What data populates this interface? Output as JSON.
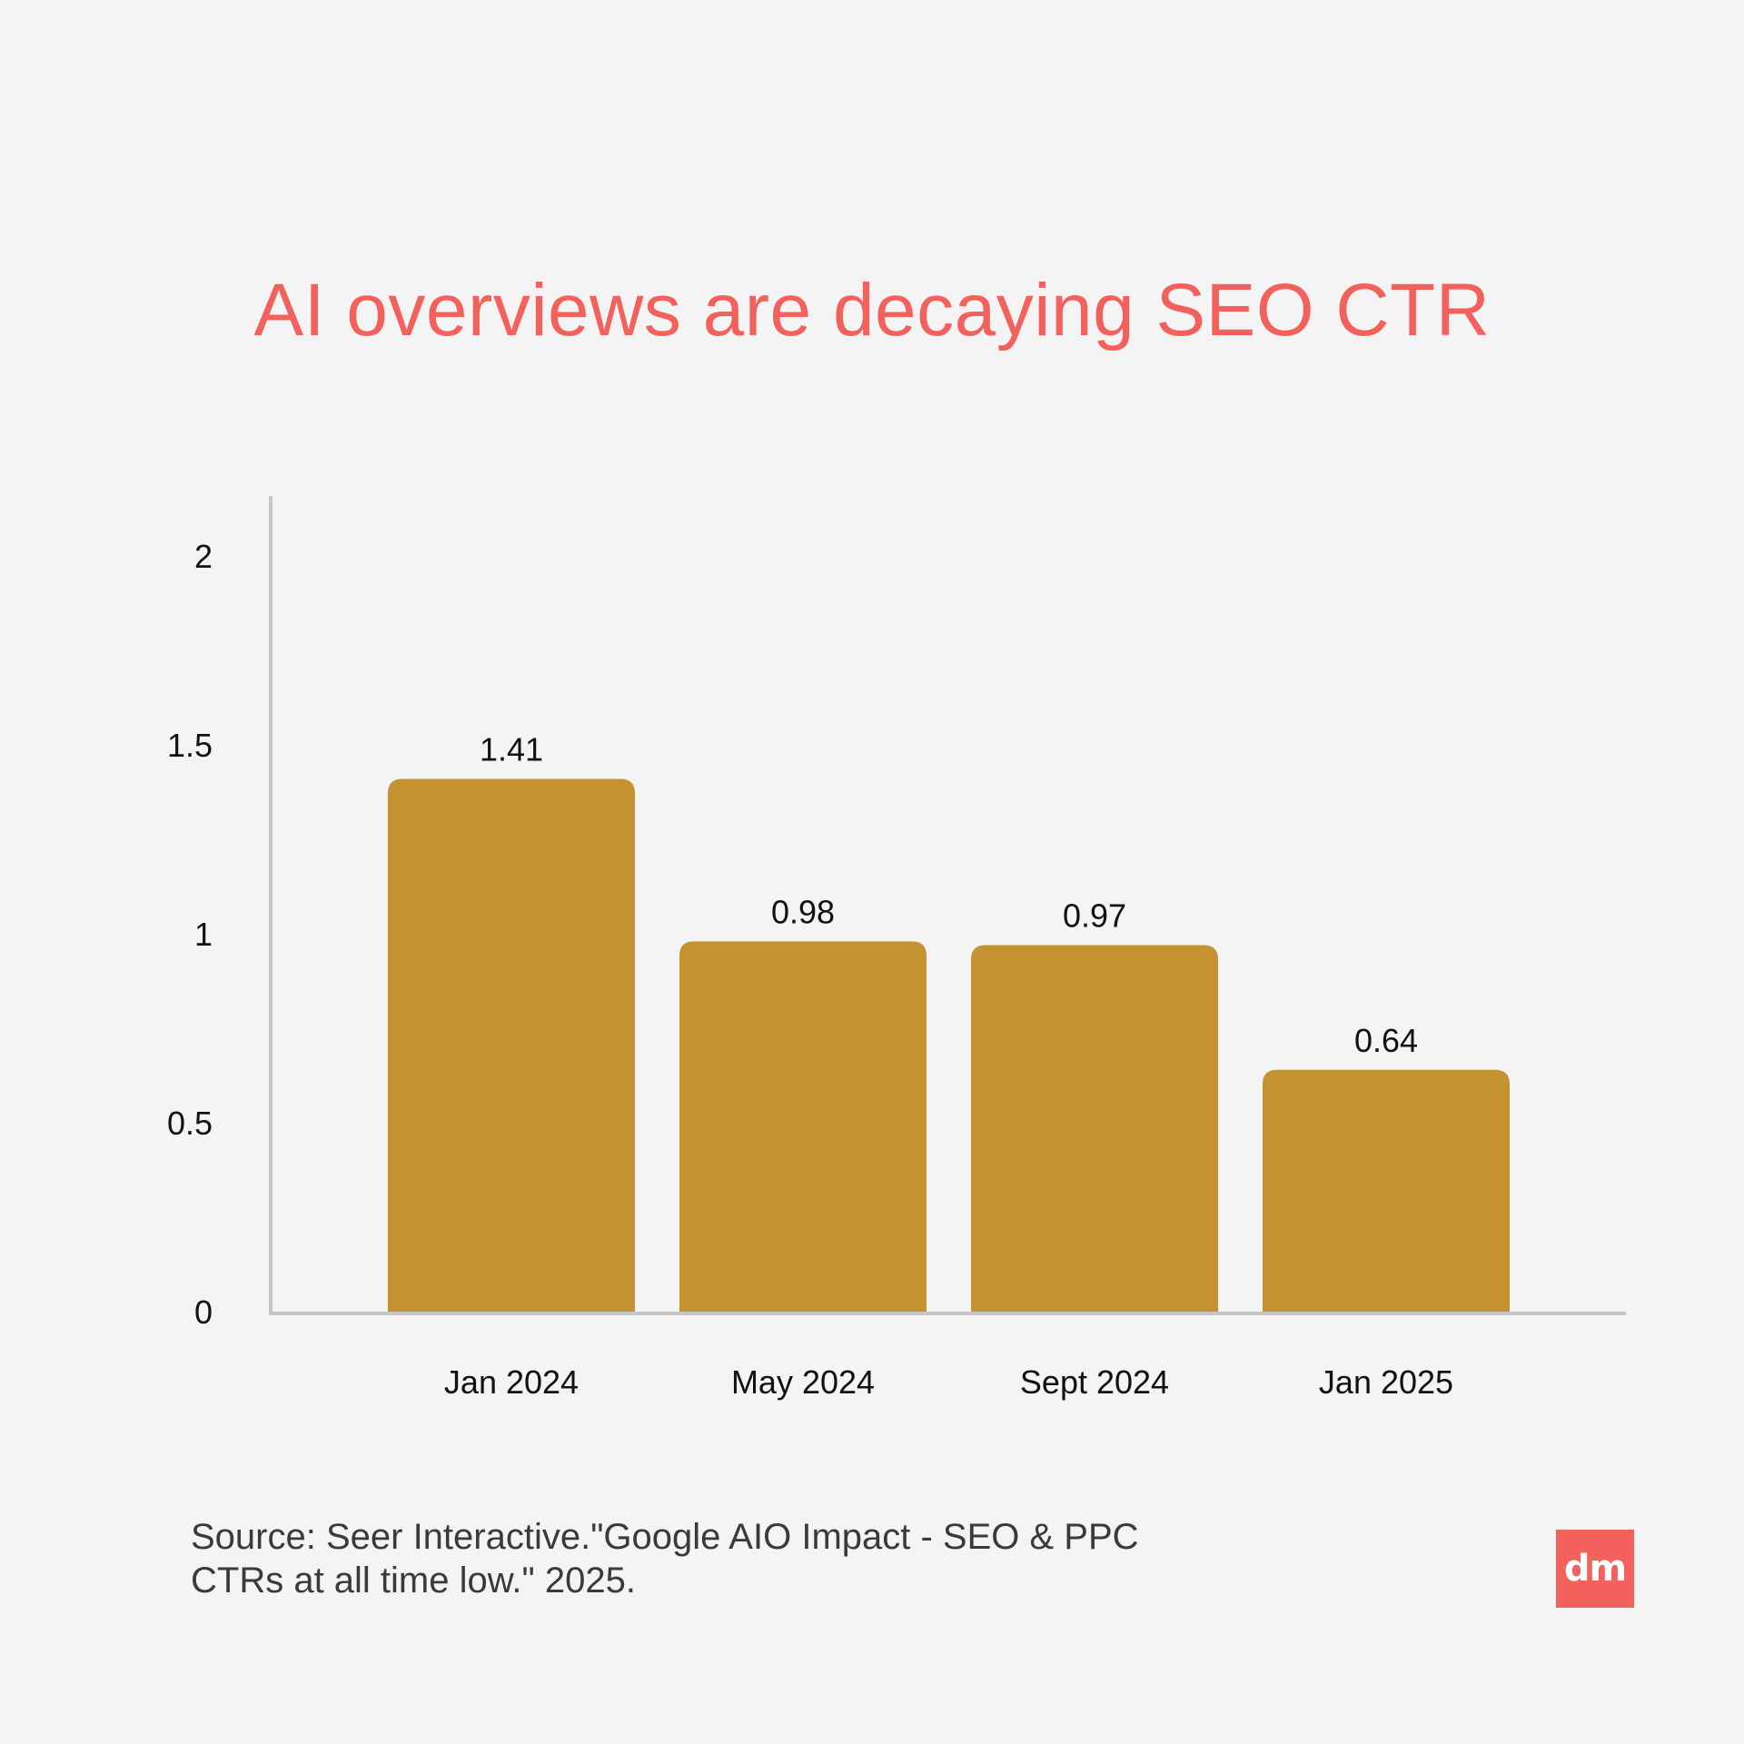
{
  "title": "AI overviews are decaying SEO CTR",
  "source": "Source: Seer Interactive.\"Google AIO Impact - SEO & PPC CTRs at all time low.\" 2025.",
  "logo": "dm",
  "colors": {
    "background": "#f4f4f4",
    "title": "#f2615c",
    "bar": "#c49230",
    "axis": "#c6c6c6",
    "logo_bg": "#f2615c"
  },
  "chart_data": {
    "type": "bar",
    "title": "AI overviews are decaying SEO CTR",
    "xlabel": "",
    "ylabel": "",
    "categories": [
      "Jan 2024",
      "May 2024",
      "Sept 2024",
      "Jan 2025"
    ],
    "values": [
      1.41,
      0.98,
      0.97,
      0.64
    ],
    "data_labels": [
      "1.41",
      "0.98",
      "0.97",
      "0.64"
    ],
    "yticks": [
      0,
      0.5,
      1,
      1.5,
      2
    ],
    "ytick_labels": [
      "0",
      "0.5",
      "1",
      "1.5",
      "2"
    ],
    "ylim": [
      0,
      2.15
    ],
    "grid": false,
    "legend": "none"
  }
}
